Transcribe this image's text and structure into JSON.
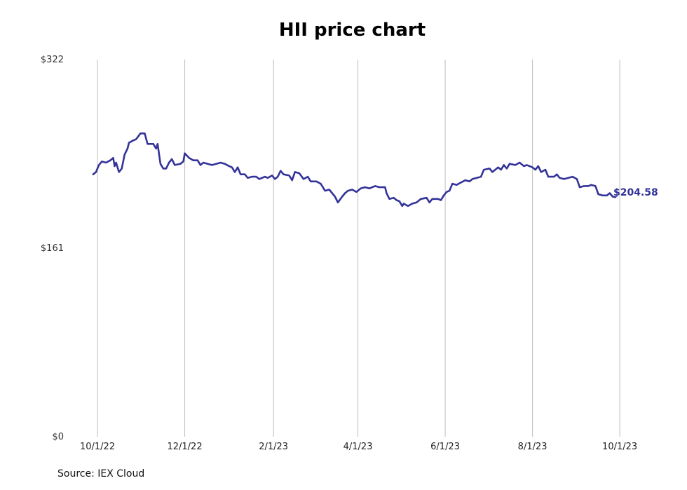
{
  "chart_data": {
    "type": "line",
    "title": "HII price chart",
    "source": "Source: IEX Cloud",
    "line_color": "#333399",
    "grid_color": "#bfbfbf",
    "x_grid": true,
    "y_grid": false,
    "ylim": [
      0,
      322
    ],
    "xlim": [
      "2022-09-30",
      "2023-09-28"
    ],
    "y_ticks": [
      {
        "value": 0,
        "label": "$0"
      },
      {
        "value": 161,
        "label": "$161"
      },
      {
        "value": 322,
        "label": "$322"
      }
    ],
    "x_ticks": [
      {
        "date": "2022-10-01",
        "label": "10/1/22"
      },
      {
        "date": "2022-12-01",
        "label": "12/1/22"
      },
      {
        "date": "2023-02-01",
        "label": "2/1/23"
      },
      {
        "date": "2023-04-01",
        "label": "4/1/23"
      },
      {
        "date": "2023-06-01",
        "label": "6/1/23"
      },
      {
        "date": "2023-08-01",
        "label": "8/1/23"
      },
      {
        "date": "2023-10-01",
        "label": "10/1/23"
      }
    ],
    "end_label": "$204.58",
    "series": [
      {
        "points": [
          [
            "2022-09-28",
            224
          ],
          [
            "2022-09-30",
            226
          ],
          [
            "2022-10-02",
            232
          ],
          [
            "2022-10-04",
            235
          ],
          [
            "2022-10-07",
            234
          ],
          [
            "2022-10-10",
            236
          ],
          [
            "2022-10-12",
            238
          ],
          [
            "2022-10-13",
            231
          ],
          [
            "2022-10-14",
            234
          ],
          [
            "2022-10-16",
            226
          ],
          [
            "2022-10-18",
            229
          ],
          [
            "2022-10-20",
            241
          ],
          [
            "2022-10-22",
            246
          ],
          [
            "2022-10-23",
            251
          ],
          [
            "2022-10-26",
            253
          ],
          [
            "2022-10-28",
            254
          ],
          [
            "2022-10-31",
            259
          ],
          [
            "2022-11-03",
            259
          ],
          [
            "2022-11-05",
            250
          ],
          [
            "2022-11-09",
            250
          ],
          [
            "2022-11-11",
            246
          ],
          [
            "2022-11-12",
            250
          ],
          [
            "2022-11-14",
            233
          ],
          [
            "2022-11-16",
            229
          ],
          [
            "2022-11-18",
            229
          ],
          [
            "2022-11-20",
            234
          ],
          [
            "2022-11-22",
            237
          ],
          [
            "2022-11-24",
            232
          ],
          [
            "2022-11-28",
            233
          ],
          [
            "2022-11-30",
            235
          ],
          [
            "2022-12-01",
            242
          ],
          [
            "2022-12-04",
            238
          ],
          [
            "2022-12-07",
            236
          ],
          [
            "2022-12-10",
            236
          ],
          [
            "2022-12-12",
            232
          ],
          [
            "2022-12-14",
            234
          ],
          [
            "2022-12-17",
            233
          ],
          [
            "2022-12-20",
            232
          ],
          [
            "2022-12-23",
            233
          ],
          [
            "2022-12-26",
            234
          ],
          [
            "2022-12-29",
            233
          ],
          [
            "2023-01-01",
            231
          ],
          [
            "2023-01-03",
            230
          ],
          [
            "2023-01-05",
            226
          ],
          [
            "2023-01-07",
            230
          ],
          [
            "2023-01-09",
            224
          ],
          [
            "2023-01-12",
            224
          ],
          [
            "2023-01-14",
            221
          ],
          [
            "2023-01-17",
            222
          ],
          [
            "2023-01-20",
            222
          ],
          [
            "2023-01-22",
            220
          ],
          [
            "2023-01-26",
            222
          ],
          [
            "2023-01-28",
            221
          ],
          [
            "2023-01-31",
            223
          ],
          [
            "2023-02-02",
            220
          ],
          [
            "2023-02-04",
            222
          ],
          [
            "2023-02-06",
            227
          ],
          [
            "2023-02-08",
            224
          ],
          [
            "2023-02-12",
            223
          ],
          [
            "2023-02-14",
            219
          ],
          [
            "2023-02-16",
            226
          ],
          [
            "2023-02-19",
            225
          ],
          [
            "2023-02-22",
            220
          ],
          [
            "2023-02-25",
            222
          ],
          [
            "2023-02-27",
            218
          ],
          [
            "2023-03-03",
            218
          ],
          [
            "2023-03-06",
            216
          ],
          [
            "2023-03-09",
            210
          ],
          [
            "2023-03-12",
            211
          ],
          [
            "2023-03-14",
            208
          ],
          [
            "2023-03-16",
            205
          ],
          [
            "2023-03-18",
            200
          ],
          [
            "2023-03-21",
            205
          ],
          [
            "2023-03-23",
            208
          ],
          [
            "2023-03-25",
            210
          ],
          [
            "2023-03-28",
            211
          ],
          [
            "2023-03-31",
            209
          ],
          [
            "2023-04-03",
            212
          ],
          [
            "2023-04-06",
            213
          ],
          [
            "2023-04-09",
            212
          ],
          [
            "2023-04-11",
            213
          ],
          [
            "2023-04-13",
            214
          ],
          [
            "2023-04-16",
            213
          ],
          [
            "2023-04-20",
            213
          ],
          [
            "2023-04-21",
            208
          ],
          [
            "2023-04-23",
            203
          ],
          [
            "2023-04-26",
            204
          ],
          [
            "2023-04-28",
            202
          ],
          [
            "2023-04-30",
            201
          ],
          [
            "2023-05-02",
            197
          ],
          [
            "2023-05-03",
            199
          ],
          [
            "2023-05-06",
            197
          ],
          [
            "2023-05-09",
            199
          ],
          [
            "2023-05-12",
            200
          ],
          [
            "2023-05-15",
            203
          ],
          [
            "2023-05-19",
            204
          ],
          [
            "2023-05-21",
            200
          ],
          [
            "2023-05-23",
            203
          ],
          [
            "2023-05-27",
            203
          ],
          [
            "2023-05-29",
            202
          ],
          [
            "2023-05-31",
            206
          ],
          [
            "2023-06-02",
            209
          ],
          [
            "2023-06-04",
            210
          ],
          [
            "2023-06-06",
            216
          ],
          [
            "2023-06-09",
            215
          ],
          [
            "2023-06-12",
            217
          ],
          [
            "2023-06-15",
            219
          ],
          [
            "2023-06-18",
            218
          ],
          [
            "2023-06-20",
            220
          ],
          [
            "2023-06-23",
            221
          ],
          [
            "2023-06-26",
            222
          ],
          [
            "2023-06-28",
            228
          ],
          [
            "2023-07-02",
            229
          ],
          [
            "2023-07-04",
            226
          ],
          [
            "2023-07-08",
            230
          ],
          [
            "2023-07-10",
            228
          ],
          [
            "2023-07-12",
            232
          ],
          [
            "2023-07-14",
            229
          ],
          [
            "2023-07-16",
            233
          ],
          [
            "2023-07-20",
            232
          ],
          [
            "2023-07-23",
            234
          ],
          [
            "2023-07-26",
            231
          ],
          [
            "2023-07-28",
            232
          ],
          [
            "2023-08-01",
            230
          ],
          [
            "2023-08-03",
            228
          ],
          [
            "2023-08-05",
            231
          ],
          [
            "2023-08-07",
            226
          ],
          [
            "2023-08-10",
            228
          ],
          [
            "2023-08-12",
            222
          ],
          [
            "2023-08-16",
            222
          ],
          [
            "2023-08-18",
            224
          ],
          [
            "2023-08-20",
            221
          ],
          [
            "2023-08-23",
            220
          ],
          [
            "2023-08-26",
            221
          ],
          [
            "2023-08-29",
            222
          ],
          [
            "2023-09-01",
            220
          ],
          [
            "2023-09-03",
            213
          ],
          [
            "2023-09-06",
            214
          ],
          [
            "2023-09-09",
            214
          ],
          [
            "2023-09-11",
            215
          ],
          [
            "2023-09-14",
            214
          ],
          [
            "2023-09-16",
            207
          ],
          [
            "2023-09-19",
            206
          ],
          [
            "2023-09-22",
            206
          ],
          [
            "2023-09-24",
            208
          ],
          [
            "2023-09-26",
            205
          ],
          [
            "2023-09-28",
            204.58
          ]
        ]
      }
    ]
  }
}
